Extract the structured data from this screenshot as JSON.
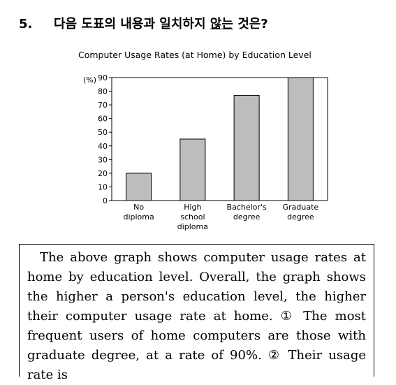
{
  "question": {
    "number": "5.",
    "text_before": "다음 도표의 내용과 일치하지 ",
    "text_underlined": "않는",
    "text_after": " 것은?"
  },
  "chart_data": {
    "type": "bar",
    "title": "Computer Usage Rates (at Home) by Education Level",
    "ylabel": "(%)",
    "ylim": [
      0,
      90
    ],
    "yticks": [
      0,
      10,
      20,
      30,
      40,
      50,
      60,
      70,
      80,
      90
    ],
    "categories": [
      [
        "No",
        "diploma"
      ],
      [
        "High",
        "school",
        "diploma"
      ],
      [
        "Bachelor's",
        "degree"
      ],
      [
        "Graduate",
        "degree"
      ]
    ],
    "values": [
      20,
      45,
      77,
      90
    ],
    "bar_color": "#bdbdbd",
    "grid": false
  },
  "passage": {
    "text": "The above graph shows computer usage rates at home by education level. Overall, the graph shows the higher a person's education level, the higher their computer usage rate at home. ① The most frequent users of home computers are those with graduate degree, at a rate of 90%. ② Their usage rate is"
  }
}
